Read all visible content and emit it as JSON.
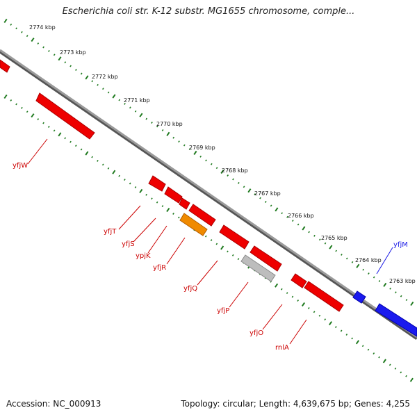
{
  "title": "Escherichia coli str. K-12 substr. MG1655 chromosome, comple...",
  "footer": {
    "accession": "Accession: NC_000913",
    "summary": "Topology: circular; Length: 4,639,675 bp; Genes: 4,255"
  },
  "colors": {
    "backbone": "#7f7f7f",
    "ticks": "#1f7a1f",
    "forward_gene": "#ee0000",
    "highlight_gene": "#f08a00",
    "pseudo_gene": "#bdbdbd",
    "reverse_gene": "#1a1aee",
    "forward_label": "#cc0000",
    "reverse_label": "#1a1ae6"
  },
  "scale_labels": [
    "2774 kbp",
    "2773 kbp",
    "2772 kbp",
    "2771 kbp",
    "2770 kbp",
    "2769 kbp",
    "2768 kbp",
    "2767 kbp",
    "2766 kbp",
    "2765 kbp",
    "2764 kbp",
    "2763 kbp"
  ],
  "gene_labels": [
    {
      "name": "yfjW",
      "strand": "forward"
    },
    {
      "name": "yfjT",
      "strand": "forward"
    },
    {
      "name": "yfjS",
      "strand": "forward"
    },
    {
      "name": "ypjK",
      "strand": "forward"
    },
    {
      "name": "yfjR",
      "strand": "forward"
    },
    {
      "name": "yfjQ",
      "strand": "forward"
    },
    {
      "name": "yfjP",
      "strand": "forward"
    },
    {
      "name": "yfjO",
      "strand": "forward"
    },
    {
      "name": "rnlA",
      "strand": "forward"
    },
    {
      "name": "yfjM",
      "strand": "reverse"
    }
  ]
}
